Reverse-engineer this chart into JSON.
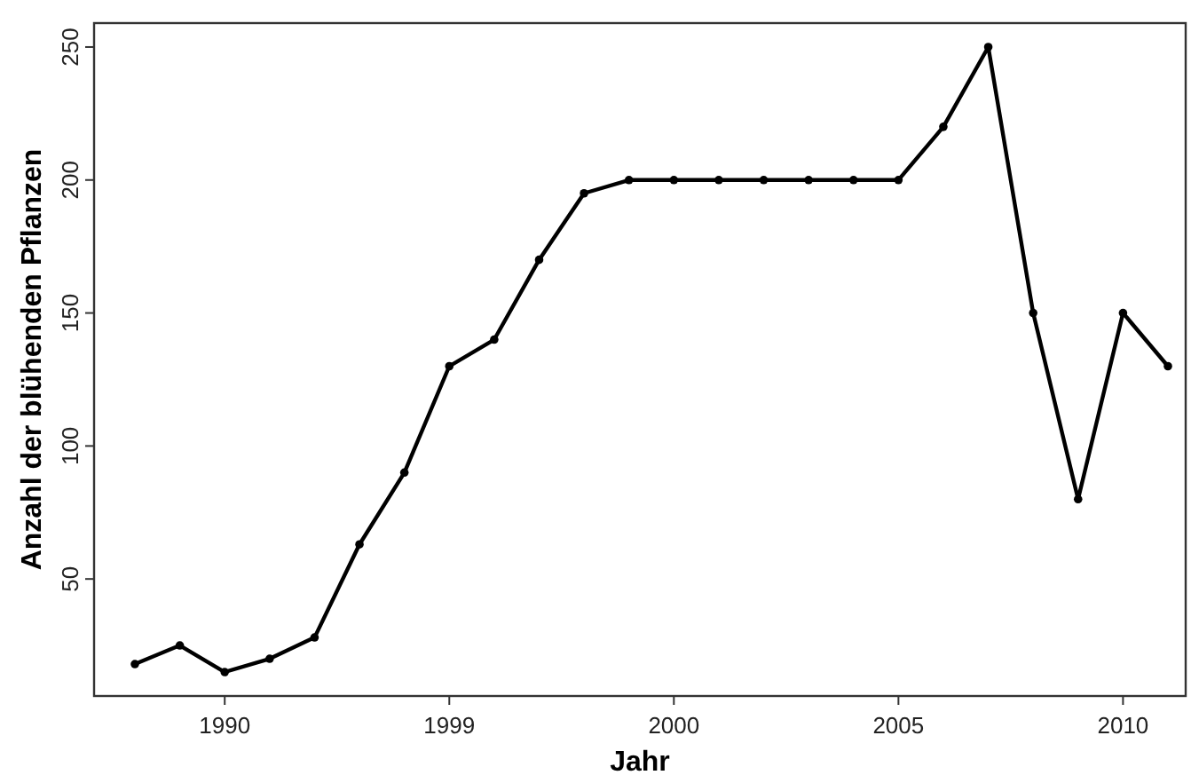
{
  "chart_data": {
    "type": "line",
    "xlabel": "Jahr",
    "ylabel": "Anzahl der blühenden Pflanzen",
    "categories": [
      null,
      null,
      "1990",
      null,
      null,
      null,
      null,
      "1999",
      null,
      null,
      null,
      null,
      "2000",
      null,
      null,
      null,
      null,
      "2005",
      null,
      null,
      null,
      null,
      "2010",
      null
    ],
    "series": [
      {
        "color": "#000000",
        "values": [
          18,
          25,
          15,
          20,
          28,
          63,
          90,
          130,
          140,
          170,
          195,
          200,
          200,
          200,
          200,
          200,
          200,
          200,
          220,
          250,
          150,
          80,
          150,
          130
        ]
      }
    ],
    "ylim": [
      6,
      259
    ],
    "yticks": [
      50,
      100,
      150,
      200,
      250
    ],
    "grid": false,
    "marker": "circle",
    "line_style": "solid"
  }
}
